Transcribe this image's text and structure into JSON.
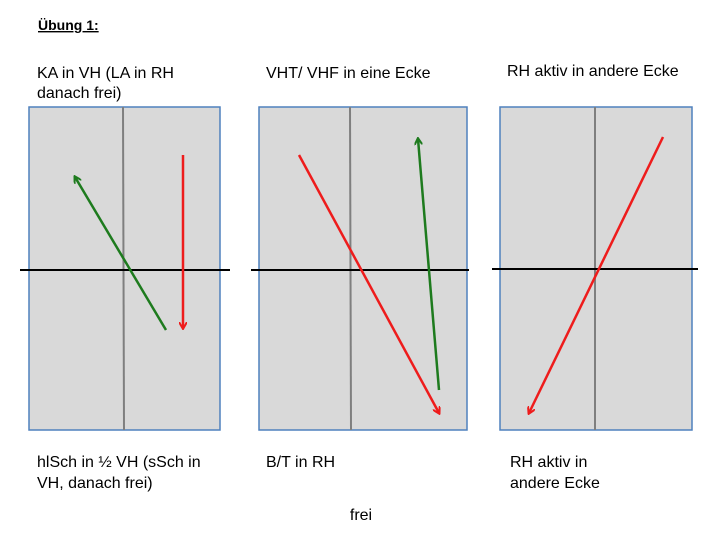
{
  "header": {
    "title": "Übung 1:"
  },
  "panels": [
    {
      "top_label": [
        "KA in VH (LA in RH",
        "danach frei)"
      ],
      "bottom_label": [
        "hlSch in ½ VH (sSch in",
        "VH, danach frei)"
      ]
    },
    {
      "top_label": [
        "VHT/ VHF in eine Ecke"
      ],
      "bottom_label": [
        "B/T in RH"
      ]
    },
    {
      "top_label": [
        "RH aktiv in andere Ecke"
      ],
      "bottom_label": [
        "RH aktiv in",
        "andere Ecke"
      ]
    }
  ],
  "footer": {
    "text": "frei"
  }
}
